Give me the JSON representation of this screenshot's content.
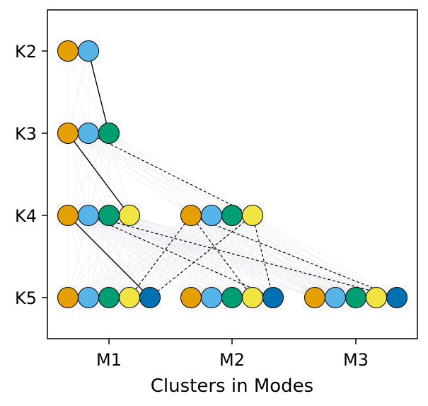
{
  "chart_data": {
    "type": "scatter",
    "title": "",
    "xlabel": "Clusters in Modes",
    "ylabel": "",
    "x_ticks": [
      "M1",
      "M2",
      "M3"
    ],
    "y_ticks": [
      "K2",
      "K3",
      "K4",
      "K5"
    ],
    "colors": {
      "c1": "#E69F00",
      "c2": "#56B4E9",
      "c3": "#009E73",
      "c4": "#F0E442",
      "c5": "#0072B2"
    },
    "groups": [
      {
        "k": "K2",
        "mode": "M1",
        "clusters": [
          "c1",
          "c2"
        ]
      },
      {
        "k": "K3",
        "mode": "M1",
        "clusters": [
          "c1",
          "c2",
          "c3"
        ]
      },
      {
        "k": "K4",
        "mode": "M1",
        "clusters": [
          "c1",
          "c2",
          "c3",
          "c4"
        ]
      },
      {
        "k": "K4",
        "mode": "M2",
        "clusters": [
          "c1",
          "c2",
          "c3",
          "c4"
        ]
      },
      {
        "k": "K5",
        "mode": "M1",
        "clusters": [
          "c1",
          "c2",
          "c3",
          "c4",
          "c5"
        ]
      },
      {
        "k": "K5",
        "mode": "M2",
        "clusters": [
          "c1",
          "c2",
          "c3",
          "c4",
          "c5"
        ]
      },
      {
        "k": "K5",
        "mode": "M3",
        "clusters": [
          "c1",
          "c2",
          "c3",
          "c4",
          "c5"
        ]
      }
    ],
    "solid_links": [
      {
        "from": [
          "K2",
          "M1",
          1
        ],
        "to": [
          "K3",
          "M1",
          2
        ]
      },
      {
        "from": [
          "K3",
          "M1",
          0
        ],
        "to": [
          "K4",
          "M1",
          3
        ]
      },
      {
        "from": [
          "K4",
          "M1",
          0
        ],
        "to": [
          "K5",
          "M1",
          4
        ]
      }
    ],
    "dashed_links": [
      {
        "from": [
          "K3",
          "M1",
          1
        ],
        "to": [
          "K4",
          "M2",
          3
        ]
      },
      {
        "from": [
          "K4",
          "M1",
          1
        ],
        "to": [
          "K5",
          "M2",
          4
        ]
      },
      {
        "from": [
          "K4",
          "M1",
          1
        ],
        "to": [
          "K5",
          "M3",
          4
        ]
      },
      {
        "from": [
          "K4",
          "M2",
          0
        ],
        "to": [
          "K5",
          "M1",
          3
        ]
      },
      {
        "from": [
          "K4",
          "M2",
          0
        ],
        "to": [
          "K5",
          "M2",
          3
        ]
      },
      {
        "from": [
          "K4",
          "M2",
          0
        ],
        "to": [
          "K5",
          "M3",
          4
        ]
      },
      {
        "from": [
          "K4",
          "M2",
          3
        ],
        "to": [
          "K5",
          "M1",
          4
        ]
      },
      {
        "from": [
          "K4",
          "M2",
          3
        ],
        "to": [
          "K5",
          "M2",
          4
        ]
      }
    ],
    "grid": false,
    "legend": "none"
  }
}
